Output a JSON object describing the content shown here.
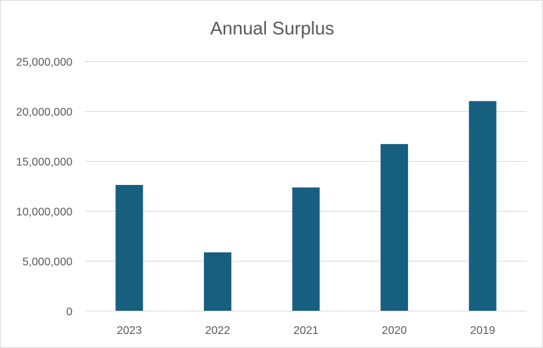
{
  "chart_data": {
    "type": "bar",
    "title": "Annual Surplus",
    "xlabel": "",
    "ylabel": "",
    "categories": [
      "2023",
      "2022",
      "2021",
      "2020",
      "2019"
    ],
    "values": [
      12600000,
      5850000,
      12350000,
      16700000,
      21000000
    ],
    "ylim": [
      0,
      25000000
    ],
    "y_ticks": [
      0,
      5000000,
      10000000,
      15000000,
      20000000,
      25000000
    ],
    "y_tick_labels": [
      "0",
      "5,000,000",
      "10,000,000",
      "15,000,000",
      "20,000,000",
      "25,000,000"
    ],
    "grid": true,
    "legend": "none",
    "bar_color": "#175F7F"
  }
}
